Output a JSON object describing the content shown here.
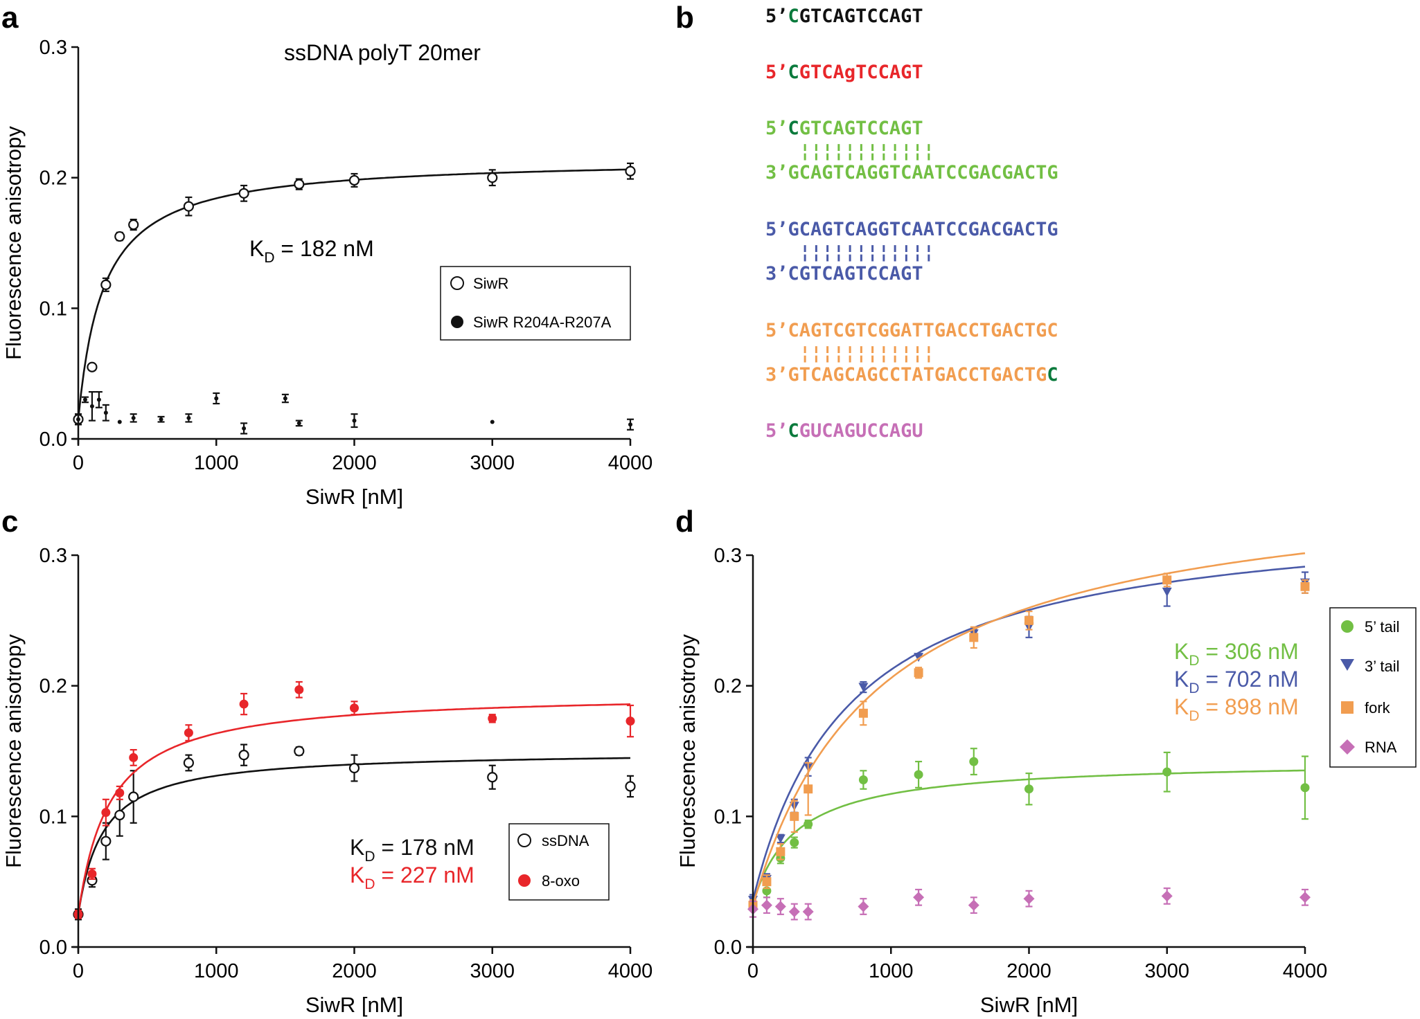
{
  "colors": {
    "black": "#111111",
    "red": "#e8262a",
    "green": "#72bf44",
    "blue": "#4a5aa8",
    "orange": "#f19d50",
    "pink": "#c66fb6",
    "darkgreen": "#0a7a3c"
  },
  "panels": {
    "a": {
      "letter": "a"
    },
    "b": {
      "letter": "b"
    },
    "c": {
      "letter": "c"
    },
    "d": {
      "letter": "d"
    }
  },
  "seq": {
    "s1": {
      "p": "5’",
      "f": "C",
      "r": "GTCAGTCCAGT"
    },
    "s2": {
      "p": "5’",
      "f": "C",
      "r1": "GTCA",
      "g": "g",
      "r2": "TCCAGT"
    },
    "s3": {
      "p": "5’",
      "f": "C",
      "r": "GTCAGTCCAGT",
      "bars": "¦¦¦¦¦¦¦¦¦¦¦¦",
      "p2": "3’",
      "r2": "GCAGTCAGGTCAATCCGACGACTG"
    },
    "s4": {
      "p": "5’",
      "r": "GCAGTCAGGTCAATCCGACGACTG",
      "bars": "¦¦¦¦¦¦¦¦¦¦¦¦",
      "p2": "3’",
      "r2": "CGTCAGTCCAGT"
    },
    "s5": {
      "p": "5’",
      "r": "CAGTCGTCGGATTGACCTGACTGC",
      "bars": "¦¦¦¦¦¦¦¦¦¦¦¦",
      "p2": "3’",
      "r2": "GTCAGCAGCCTATGACCTGACTG",
      "f2": "C"
    },
    "s6": {
      "p": "5’",
      "f": "C",
      "r": "GUCAGUCCAGU"
    }
  },
  "chart_data": [
    {
      "panel": "a",
      "type": "scatter",
      "title": "ssDNA polyT 20mer",
      "xlabel": "SiwR [nM]",
      "ylabel": "Fluorescence anisotropy",
      "xlim": [
        0,
        4000
      ],
      "ylim": [
        0,
        0.3
      ],
      "xticks": [
        "0",
        "1000",
        "2000",
        "3000",
        "4000"
      ],
      "yticks": [
        "0.0",
        "0.1",
        "0.2",
        "0.3"
      ],
      "annotation": {
        "k": "K",
        "sub": "D",
        "rest": " = 182 nM"
      },
      "legend": {
        "position": "right",
        "entries": [
          "SiwR",
          "SiwR R204A-R207A"
        ]
      },
      "series": [
        {
          "name": "SiwR",
          "marker": "open-circle",
          "fit": {
            "kd": 182,
            "bmax": 0.2
          },
          "x": [
            0,
            100,
            200,
            300,
            400,
            800,
            1200,
            1600,
            2000,
            3000,
            4000
          ],
          "y": [
            0.015,
            0.055,
            0.118,
            0.155,
            0.164,
            0.178,
            0.188,
            0.195,
            0.198,
            0.2,
            0.205
          ],
          "err": [
            0.004,
            0,
            0.005,
            0.003,
            0.004,
            0.007,
            0.006,
            0.004,
            0.005,
            0.006,
            0.006
          ]
        },
        {
          "name": "SiwR R204A-R207A",
          "marker": "filled-circle",
          "x": [
            0,
            50,
            100,
            150,
            200,
            300,
            400,
            600,
            800,
            1000,
            1200,
            1500,
            1600,
            2000,
            3000,
            4000
          ],
          "y": [
            0.015,
            0.03,
            0.025,
            0.03,
            0.02,
            0.013,
            0.016,
            0.015,
            0.016,
            0.031,
            0.008,
            0.031,
            0.012,
            0.014,
            0.013,
            0.011
          ],
          "err": [
            0.004,
            0.002,
            0.011,
            0.006,
            0.006,
            0,
            0.003,
            0.002,
            0.003,
            0.004,
            0.004,
            0.003,
            0.002,
            0.005,
            0,
            0.004
          ]
        }
      ]
    },
    {
      "panel": "c",
      "type": "scatter",
      "xlabel": "SiwR [nM]",
      "ylabel": "Fluorescence anisotropy",
      "xlim": [
        0,
        4000
      ],
      "ylim": [
        0,
        0.3
      ],
      "xticks": [
        "0",
        "1000",
        "2000",
        "3000",
        "4000"
      ],
      "yticks": [
        "0.0",
        "0.1",
        "0.2",
        "0.3"
      ],
      "annotations": [
        {
          "k": "K",
          "sub": "D",
          "rest": " = 178 nM"
        },
        {
          "k": "K",
          "sub": "D",
          "rest": " = 227 nM"
        }
      ],
      "legend": {
        "position": "right",
        "entries": [
          "ssDNA",
          "8-oxo"
        ]
      },
      "series": [
        {
          "name": "ssDNA",
          "marker": "open-circle",
          "fit": {
            "kd": 178,
            "bmax": 0.125
          },
          "x": [
            0,
            100,
            200,
            300,
            400,
            800,
            1200,
            1600,
            2000,
            3000,
            4000
          ],
          "y": [
            0.025,
            0.051,
            0.081,
            0.101,
            0.115,
            0.141,
            0.147,
            0.15,
            0.137,
            0.13,
            0.123
          ],
          "err": [
            0.004,
            0.005,
            0.014,
            0.016,
            0.02,
            0.006,
            0.008,
            0.003,
            0.01,
            0.009,
            0.008
          ]
        },
        {
          "name": "8-oxo",
          "marker": "filled-circle",
          "fit": {
            "kd": 227,
            "bmax": 0.17
          },
          "x": [
            0,
            100,
            200,
            300,
            400,
            800,
            1200,
            1600,
            2000,
            3000,
            4000
          ],
          "y": [
            0.025,
            0.056,
            0.103,
            0.118,
            0.145,
            0.164,
            0.186,
            0.197,
            0.183,
            0.175,
            0.173
          ],
          "err": [
            0.003,
            0.004,
            0.01,
            0.005,
            0.006,
            0.006,
            0.008,
            0.006,
            0.005,
            0.003,
            0.012
          ]
        }
      ]
    },
    {
      "panel": "d",
      "type": "scatter",
      "xlabel": "SiwR [nM]",
      "ylabel": "Fluorescence anisotropy",
      "xlim": [
        0,
        4000
      ],
      "ylim": [
        0,
        0.3
      ],
      "xticks": [
        "0",
        "1000",
        "2000",
        "3000",
        "4000"
      ],
      "yticks": [
        "0.0",
        "0.1",
        "0.2",
        "0.3"
      ],
      "annotations": [
        {
          "k": "K",
          "sub": "D",
          "rest": " = 306 nM"
        },
        {
          "k": "K",
          "sub": "D",
          "rest": " = 702 nM"
        },
        {
          "k": "K",
          "sub": "D",
          "rest": " = 898 nM"
        }
      ],
      "legend": {
        "position": "right",
        "entries": [
          "5’ tail",
          "3’ tail",
          "fork",
          "RNA"
        ]
      },
      "series": [
        {
          "name": "5’ tail",
          "marker": "filled-circle",
          "fit": {
            "kd": 306,
            "bmax": 0.11
          },
          "x": [
            0,
            100,
            200,
            300,
            400,
            800,
            1200,
            1600,
            2000,
            3000,
            4000
          ],
          "y": [
            0.033,
            0.043,
            0.068,
            0.08,
            0.094,
            0.128,
            0.132,
            0.142,
            0.121,
            0.134,
            0.122
          ],
          "err": [
            0.003,
            0.005,
            0.004,
            0.004,
            0.003,
            0.007,
            0.01,
            0.01,
            0.012,
            0.015,
            0.024
          ]
        },
        {
          "name": "3’ tail",
          "marker": "triangle-down",
          "fit": {
            "kd": 702,
            "bmax": 0.3
          },
          "x": [
            0,
            100,
            200,
            300,
            400,
            800,
            1200,
            1600,
            2000,
            3000,
            4000
          ],
          "y": [
            0.036,
            0.052,
            0.083,
            0.108,
            0.138,
            0.199,
            0.222,
            0.24,
            0.245,
            0.272,
            0.279
          ],
          "err": [
            0.004,
            0.004,
            0.003,
            0.005,
            0.007,
            0.004,
            0,
            0.003,
            0.008,
            0.011,
            0.008
          ]
        },
        {
          "name": "fork",
          "marker": "square",
          "fit": {
            "kd": 898,
            "bmax": 0.33
          },
          "x": [
            0,
            100,
            200,
            300,
            400,
            800,
            1200,
            1600,
            2000,
            3000,
            4000
          ],
          "y": [
            0.032,
            0.05,
            0.073,
            0.1,
            0.121,
            0.179,
            0.21,
            0.237,
            0.25,
            0.281,
            0.276
          ],
          "err": [
            0.004,
            0.005,
            0.006,
            0.012,
            0.02,
            0.009,
            0.004,
            0.008,
            0.007,
            0.005,
            0.005
          ]
        },
        {
          "name": "RNA",
          "marker": "diamond",
          "x": [
            0,
            100,
            200,
            300,
            400,
            800,
            1200,
            1600,
            2000,
            3000,
            4000
          ],
          "y": [
            0.029,
            0.032,
            0.031,
            0.027,
            0.027,
            0.031,
            0.038,
            0.032,
            0.037,
            0.039,
            0.038
          ]
        }
      ]
    }
  ]
}
